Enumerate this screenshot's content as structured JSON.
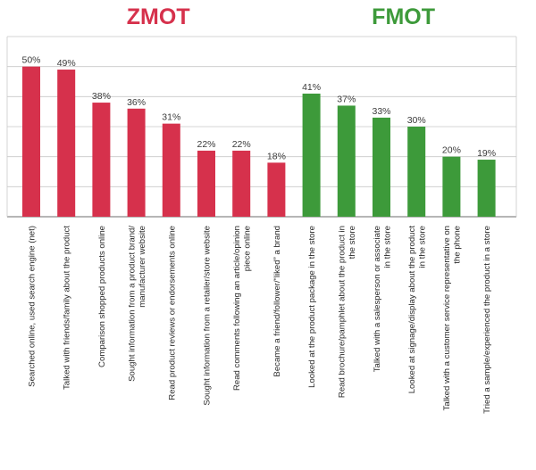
{
  "chart_data": {
    "type": "bar",
    "ylim": [
      0,
      60
    ],
    "grid": true,
    "value_suffix": "%",
    "groups": [
      {
        "name": "ZMOT",
        "color": "#d6314c",
        "categories": [
          [
            "Searched online, used search engine (net)"
          ],
          [
            "Talked with friends/family about the product"
          ],
          [
            "Comparison shopped products online"
          ],
          [
            "Sought information from a product brand/",
            "manufacturer website"
          ],
          [
            "Read product reviews or endorsements online"
          ],
          [
            "Sought information from a retailer/store website"
          ],
          [
            "Read comments following an article/opinion",
            "piece online"
          ],
          [
            "Became a friend/follower/“liked” a brand"
          ]
        ],
        "values": [
          50,
          49,
          38,
          36,
          31,
          22,
          22,
          18
        ]
      },
      {
        "name": "FMOT",
        "color": "#3d9a3a",
        "categories": [
          [
            "Looked at the product package in the store"
          ],
          [
            "Read brochure/pamphlet about the product in",
            "the store"
          ],
          [
            "Talked with a salesperson or associate",
            "in the store"
          ],
          [
            "Looked at signage/display about the product",
            "in the store"
          ],
          [
            "Talked with a customer service representative on",
            "the phone"
          ],
          [
            "Tried a sample/experienced the product in a store"
          ]
        ],
        "values": [
          41,
          37,
          33,
          30,
          20,
          19
        ]
      }
    ]
  }
}
